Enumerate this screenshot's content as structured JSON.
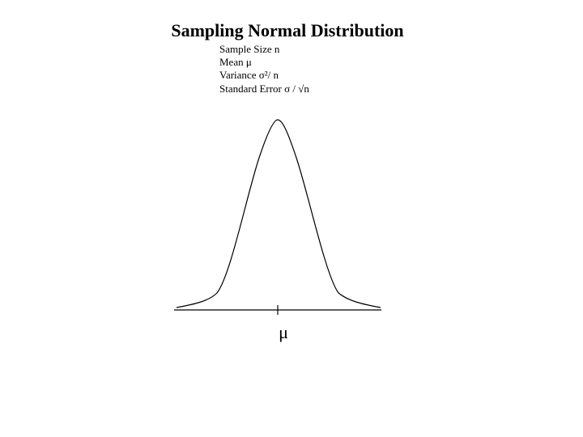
{
  "header": {
    "title": "Sampling Normal Distribution"
  },
  "info": [
    "Sample Size n",
    "Mean μ",
    "Variance σ²/ n",
    "Standard Error σ / √n"
  ],
  "axis": {
    "label": "μ"
  }
}
